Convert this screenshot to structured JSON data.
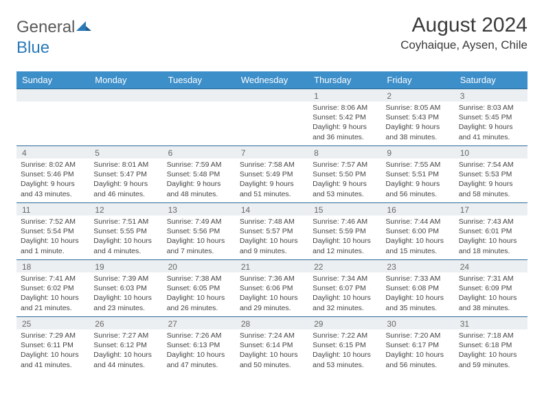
{
  "logo": {
    "text_gray": "General",
    "text_blue": "Blue"
  },
  "title": "August 2024",
  "location": "Coyhaique, Aysen, Chile",
  "colors": {
    "header_bg": "#3d8fc9",
    "header_text": "#ffffff",
    "daynum_bg": "#eceff1",
    "border": "#2a6a9a",
    "logo_gray": "#5a5a5a",
    "logo_blue": "#2a7ab8"
  },
  "day_headers": [
    "Sunday",
    "Monday",
    "Tuesday",
    "Wednesday",
    "Thursday",
    "Friday",
    "Saturday"
  ],
  "weeks": [
    [
      {
        "num": "",
        "sunrise": "",
        "sunset": "",
        "daylight": ""
      },
      {
        "num": "",
        "sunrise": "",
        "sunset": "",
        "daylight": ""
      },
      {
        "num": "",
        "sunrise": "",
        "sunset": "",
        "daylight": ""
      },
      {
        "num": "",
        "sunrise": "",
        "sunset": "",
        "daylight": ""
      },
      {
        "num": "1",
        "sunrise": "Sunrise: 8:06 AM",
        "sunset": "Sunset: 5:42 PM",
        "daylight": "Daylight: 9 hours and 36 minutes."
      },
      {
        "num": "2",
        "sunrise": "Sunrise: 8:05 AM",
        "sunset": "Sunset: 5:43 PM",
        "daylight": "Daylight: 9 hours and 38 minutes."
      },
      {
        "num": "3",
        "sunrise": "Sunrise: 8:03 AM",
        "sunset": "Sunset: 5:45 PM",
        "daylight": "Daylight: 9 hours and 41 minutes."
      }
    ],
    [
      {
        "num": "4",
        "sunrise": "Sunrise: 8:02 AM",
        "sunset": "Sunset: 5:46 PM",
        "daylight": "Daylight: 9 hours and 43 minutes."
      },
      {
        "num": "5",
        "sunrise": "Sunrise: 8:01 AM",
        "sunset": "Sunset: 5:47 PM",
        "daylight": "Daylight: 9 hours and 46 minutes."
      },
      {
        "num": "6",
        "sunrise": "Sunrise: 7:59 AM",
        "sunset": "Sunset: 5:48 PM",
        "daylight": "Daylight: 9 hours and 48 minutes."
      },
      {
        "num": "7",
        "sunrise": "Sunrise: 7:58 AM",
        "sunset": "Sunset: 5:49 PM",
        "daylight": "Daylight: 9 hours and 51 minutes."
      },
      {
        "num": "8",
        "sunrise": "Sunrise: 7:57 AM",
        "sunset": "Sunset: 5:50 PM",
        "daylight": "Daylight: 9 hours and 53 minutes."
      },
      {
        "num": "9",
        "sunrise": "Sunrise: 7:55 AM",
        "sunset": "Sunset: 5:51 PM",
        "daylight": "Daylight: 9 hours and 56 minutes."
      },
      {
        "num": "10",
        "sunrise": "Sunrise: 7:54 AM",
        "sunset": "Sunset: 5:53 PM",
        "daylight": "Daylight: 9 hours and 58 minutes."
      }
    ],
    [
      {
        "num": "11",
        "sunrise": "Sunrise: 7:52 AM",
        "sunset": "Sunset: 5:54 PM",
        "daylight": "Daylight: 10 hours and 1 minute."
      },
      {
        "num": "12",
        "sunrise": "Sunrise: 7:51 AM",
        "sunset": "Sunset: 5:55 PM",
        "daylight": "Daylight: 10 hours and 4 minutes."
      },
      {
        "num": "13",
        "sunrise": "Sunrise: 7:49 AM",
        "sunset": "Sunset: 5:56 PM",
        "daylight": "Daylight: 10 hours and 7 minutes."
      },
      {
        "num": "14",
        "sunrise": "Sunrise: 7:48 AM",
        "sunset": "Sunset: 5:57 PM",
        "daylight": "Daylight: 10 hours and 9 minutes."
      },
      {
        "num": "15",
        "sunrise": "Sunrise: 7:46 AM",
        "sunset": "Sunset: 5:59 PM",
        "daylight": "Daylight: 10 hours and 12 minutes."
      },
      {
        "num": "16",
        "sunrise": "Sunrise: 7:44 AM",
        "sunset": "Sunset: 6:00 PM",
        "daylight": "Daylight: 10 hours and 15 minutes."
      },
      {
        "num": "17",
        "sunrise": "Sunrise: 7:43 AM",
        "sunset": "Sunset: 6:01 PM",
        "daylight": "Daylight: 10 hours and 18 minutes."
      }
    ],
    [
      {
        "num": "18",
        "sunrise": "Sunrise: 7:41 AM",
        "sunset": "Sunset: 6:02 PM",
        "daylight": "Daylight: 10 hours and 21 minutes."
      },
      {
        "num": "19",
        "sunrise": "Sunrise: 7:39 AM",
        "sunset": "Sunset: 6:03 PM",
        "daylight": "Daylight: 10 hours and 23 minutes."
      },
      {
        "num": "20",
        "sunrise": "Sunrise: 7:38 AM",
        "sunset": "Sunset: 6:05 PM",
        "daylight": "Daylight: 10 hours and 26 minutes."
      },
      {
        "num": "21",
        "sunrise": "Sunrise: 7:36 AM",
        "sunset": "Sunset: 6:06 PM",
        "daylight": "Daylight: 10 hours and 29 minutes."
      },
      {
        "num": "22",
        "sunrise": "Sunrise: 7:34 AM",
        "sunset": "Sunset: 6:07 PM",
        "daylight": "Daylight: 10 hours and 32 minutes."
      },
      {
        "num": "23",
        "sunrise": "Sunrise: 7:33 AM",
        "sunset": "Sunset: 6:08 PM",
        "daylight": "Daylight: 10 hours and 35 minutes."
      },
      {
        "num": "24",
        "sunrise": "Sunrise: 7:31 AM",
        "sunset": "Sunset: 6:09 PM",
        "daylight": "Daylight: 10 hours and 38 minutes."
      }
    ],
    [
      {
        "num": "25",
        "sunrise": "Sunrise: 7:29 AM",
        "sunset": "Sunset: 6:11 PM",
        "daylight": "Daylight: 10 hours and 41 minutes."
      },
      {
        "num": "26",
        "sunrise": "Sunrise: 7:27 AM",
        "sunset": "Sunset: 6:12 PM",
        "daylight": "Daylight: 10 hours and 44 minutes."
      },
      {
        "num": "27",
        "sunrise": "Sunrise: 7:26 AM",
        "sunset": "Sunset: 6:13 PM",
        "daylight": "Daylight: 10 hours and 47 minutes."
      },
      {
        "num": "28",
        "sunrise": "Sunrise: 7:24 AM",
        "sunset": "Sunset: 6:14 PM",
        "daylight": "Daylight: 10 hours and 50 minutes."
      },
      {
        "num": "29",
        "sunrise": "Sunrise: 7:22 AM",
        "sunset": "Sunset: 6:15 PM",
        "daylight": "Daylight: 10 hours and 53 minutes."
      },
      {
        "num": "30",
        "sunrise": "Sunrise: 7:20 AM",
        "sunset": "Sunset: 6:17 PM",
        "daylight": "Daylight: 10 hours and 56 minutes."
      },
      {
        "num": "31",
        "sunrise": "Sunrise: 7:18 AM",
        "sunset": "Sunset: 6:18 PM",
        "daylight": "Daylight: 10 hours and 59 minutes."
      }
    ]
  ]
}
